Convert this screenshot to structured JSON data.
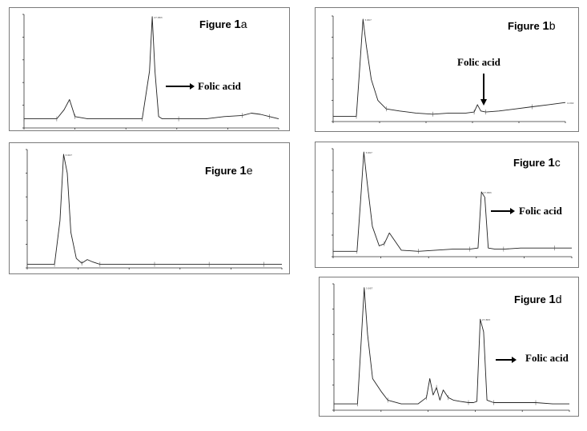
{
  "charts": [
    {
      "id": "1a",
      "label_prefix": "Figure",
      "label_number": "1",
      "label_letter": "a",
      "annotation": "Folic acid",
      "annotation_arrow": "right",
      "chart_data": {
        "type": "line",
        "x": [
          0,
          0.5,
          1,
          1.8,
          2.2,
          2.5,
          2.8,
          3.5,
          5,
          6.5,
          6.9,
          7.05,
          7.2,
          7.4,
          7.6,
          8.5,
          10,
          11,
          12,
          12.5,
          13,
          13.5,
          14
        ],
        "y": [
          8,
          8,
          8,
          8,
          16,
          25,
          10,
          8,
          8,
          8,
          50,
          98,
          50,
          10,
          8,
          8,
          8,
          10,
          11,
          13,
          12,
          10,
          8
        ],
        "xlim": [
          0,
          14
        ],
        "ylim": [
          0,
          100
        ],
        "x_ticks": [
          "0",
          "",
          "",
          "",
          "",
          ""
        ],
        "y_ticks": [
          "",
          "",
          "",
          "",
          "",
          ""
        ],
        "peak_labels": [
          "27.883"
        ]
      }
    },
    {
      "id": "1b",
      "label_prefix": "Figure",
      "label_number": "1",
      "label_letter": "b",
      "annotation": "Folic acid",
      "annotation_arrow": "down",
      "chart_data": {
        "type": "line",
        "x": [
          0,
          0.5,
          1,
          1.4,
          1.6,
          1.8,
          2.0,
          2.3,
          2.7,
          3.2,
          4,
          5,
          6,
          7,
          8,
          8.5,
          8.7,
          8.9,
          9.2,
          10,
          11,
          12,
          13,
          14
        ],
        "y": [
          5,
          5,
          5,
          5,
          50,
          97,
          72,
          40,
          20,
          12,
          10,
          8,
          7,
          8,
          8,
          9,
          16,
          10,
          9,
          10,
          12,
          14,
          16,
          18
        ],
        "xlim": [
          0,
          14
        ],
        "ylim": [
          0,
          100
        ],
        "x_ticks": [
          "",
          "",
          "",
          "",
          "",
          ""
        ],
        "y_ticks": [
          "",
          "",
          "",
          "",
          "",
          ""
        ],
        "peak_labels": [
          "3.667",
          "4.002"
        ]
      }
    },
    {
      "id": "1e",
      "label_prefix": "Figure",
      "label_number": "1",
      "label_letter": "e",
      "annotation": "",
      "annotation_arrow": "none",
      "chart_data": {
        "type": "line",
        "x": [
          0,
          0.5,
          1,
          1.5,
          1.8,
          2.0,
          2.2,
          2.4,
          2.7,
          3.0,
          3.3,
          3.6,
          4,
          5,
          6,
          7,
          8,
          9,
          10,
          11,
          12,
          13,
          14
        ],
        "y": [
          3,
          3,
          3,
          3,
          40,
          96,
          80,
          30,
          8,
          4,
          7,
          5,
          3,
          3,
          3,
          3,
          3,
          3,
          3,
          3,
          3,
          3,
          3
        ],
        "xlim": [
          0,
          14
        ],
        "ylim": [
          0,
          100
        ],
        "x_ticks": [
          "",
          "",
          "",
          "",
          "",
          ""
        ],
        "y_ticks": [
          "",
          "",
          "",
          "",
          "",
          ""
        ],
        "peak_labels": [
          "3.667"
        ]
      }
    },
    {
      "id": "1c",
      "label_prefix": "Figure",
      "label_number": "1",
      "label_letter": "c",
      "annotation": "Folic acid",
      "annotation_arrow": "right",
      "chart_data": {
        "type": "line",
        "x": [
          0,
          0.5,
          1,
          1.4,
          1.6,
          1.8,
          2.0,
          2.3,
          2.7,
          3.0,
          3.3,
          4,
          5,
          6,
          7,
          8,
          8.5,
          8.7,
          8.9,
          9.1,
          9.5,
          10,
          11,
          12,
          13,
          14
        ],
        "y": [
          5,
          5,
          5,
          5,
          50,
          97,
          68,
          28,
          10,
          12,
          22,
          6,
          5,
          6,
          7,
          7,
          8,
          60,
          55,
          8,
          7,
          7,
          8,
          8,
          8,
          8
        ],
        "xlim": [
          0,
          14
        ],
        "ylim": [
          0,
          100
        ],
        "x_ticks": [
          "",
          "",
          "",
          "",
          "",
          ""
        ],
        "y_ticks": [
          "",
          "",
          "",
          "",
          "",
          ""
        ],
        "peak_labels": [
          "3.667",
          "27.883"
        ]
      }
    },
    {
      "id": "1d",
      "label_prefix": "Figure",
      "label_number": "1",
      "label_letter": "d",
      "annotation": "Folic acid",
      "annotation_arrow": "right",
      "chart_data": {
        "type": "line",
        "x": [
          0,
          0.5,
          1,
          1.4,
          1.6,
          1.8,
          2.0,
          2.3,
          2.8,
          3.2,
          4,
          5,
          5.5,
          5.7,
          5.9,
          6.1,
          6.3,
          6.5,
          6.8,
          7.1,
          7.5,
          8,
          8.3,
          8.5,
          8.7,
          8.9,
          9.1,
          9.5,
          10,
          11,
          12,
          13,
          14
        ],
        "y": [
          5,
          5,
          5,
          5,
          50,
          97,
          60,
          25,
          15,
          8,
          5,
          5,
          10,
          25,
          12,
          18,
          8,
          16,
          10,
          8,
          7,
          6,
          6,
          7,
          72,
          62,
          8,
          6,
          6,
          6,
          6,
          5,
          5
        ],
        "xlim": [
          0,
          14
        ],
        "ylim": [
          0,
          100
        ],
        "x_ticks": [
          "",
          "",
          "",
          "",
          "",
          ""
        ],
        "y_ticks": [
          "",
          "",
          "",
          "",
          "",
          ""
        ],
        "peak_labels": [
          "3.667",
          "27.883"
        ]
      }
    }
  ]
}
